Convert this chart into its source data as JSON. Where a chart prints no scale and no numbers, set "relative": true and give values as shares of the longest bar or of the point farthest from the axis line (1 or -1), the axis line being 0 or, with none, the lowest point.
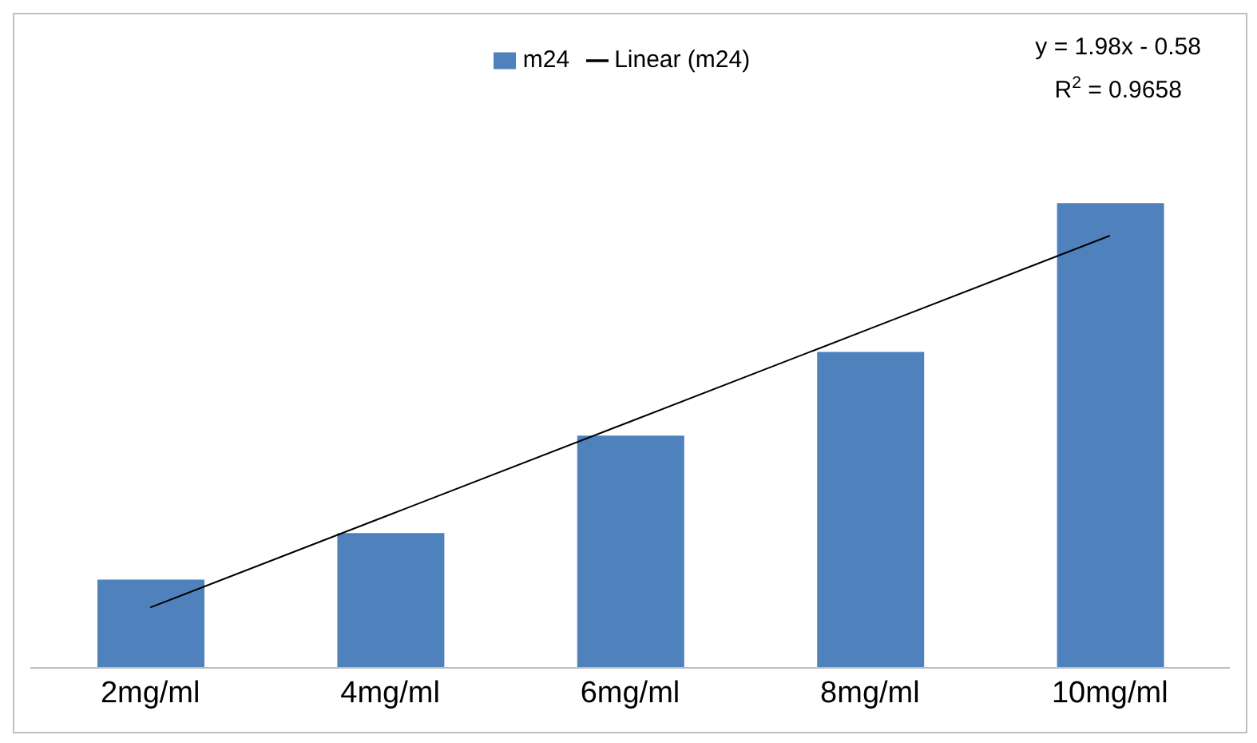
{
  "chart_data": {
    "type": "bar",
    "relative": true,
    "categories": [
      "2mg/ml",
      "4mg/ml",
      "6mg/ml",
      "8mg/ml",
      "10mg/ml"
    ],
    "series": [
      {
        "name": "m24",
        "color": "#4f81bd",
        "values": [
          0.19,
          0.29,
          0.5,
          0.68,
          1.0
        ]
      },
      {
        "name": "Linear (m24)",
        "type": "line",
        "color": "#000000",
        "values": [
          0.13,
          0.33,
          0.53,
          0.73,
          0.93
        ]
      }
    ],
    "legend": "top",
    "annotations": [
      "y = 1.98x - 0.58",
      "R$^{2}$ = 0.9658"
    ]
  }
}
